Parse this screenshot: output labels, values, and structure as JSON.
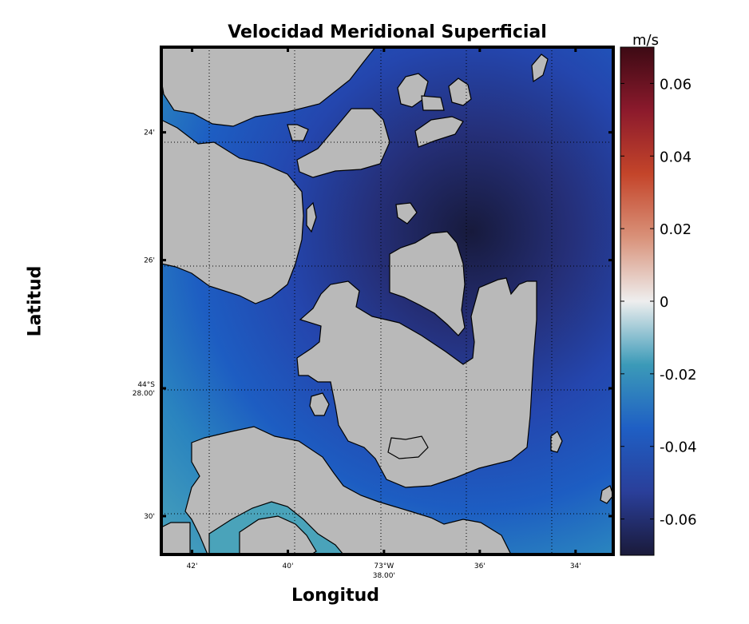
{
  "chart_data": {
    "type": "heatmap",
    "title": "Velocidad Meridional Superficial",
    "xlabel": "Longitud",
    "ylabel": "Latitud",
    "colorbar": {
      "unit": "m/s",
      "range": [
        -0.07,
        0.07
      ],
      "ticks": [
        {
          "value": 0.06,
          "label": "0.06"
        },
        {
          "value": 0.04,
          "label": "0.04"
        },
        {
          "value": 0.02,
          "label": "0.02"
        },
        {
          "value": 0,
          "label": "0"
        },
        {
          "value": -0.02,
          "label": "-0.02"
        },
        {
          "value": -0.04,
          "label": "-0.04"
        },
        {
          "value": -0.06,
          "label": "-0.06"
        }
      ],
      "colormap": [
        "#1a1a3a",
        "#2a3f9a",
        "#1f5fc4",
        "#3b9ab8",
        "#eeeeee",
        "#d9927a",
        "#c4452a",
        "#8c1a2c",
        "#3d0a14"
      ]
    },
    "x_ticks": [
      {
        "value": -73.7,
        "label": "42'"
      },
      {
        "value": -73.6667,
        "label": "40'"
      },
      {
        "value": -73.6333,
        "label": "73°W 38.00'"
      },
      {
        "value": -73.6,
        "label": "36'"
      },
      {
        "value": -73.5667,
        "label": "34'"
      }
    ],
    "y_ticks": [
      {
        "value": -44.4,
        "label": "24'"
      },
      {
        "value": -44.4333,
        "label": "26'"
      },
      {
        "value": -44.4667,
        "label": "44°S 28.00'"
      },
      {
        "value": -44.5,
        "label": "30'"
      }
    ],
    "xlim": [
      -73.7107,
      -73.5536
    ],
    "ylim": [
      -44.51,
      -44.3778
    ],
    "grid": true,
    "land_color": "#b9b9b9",
    "field_note": "velocity mostly between -0.03 and -0.07 m/s; strongest (about -0.068) near 73°35.5'W 44°25'S"
  }
}
